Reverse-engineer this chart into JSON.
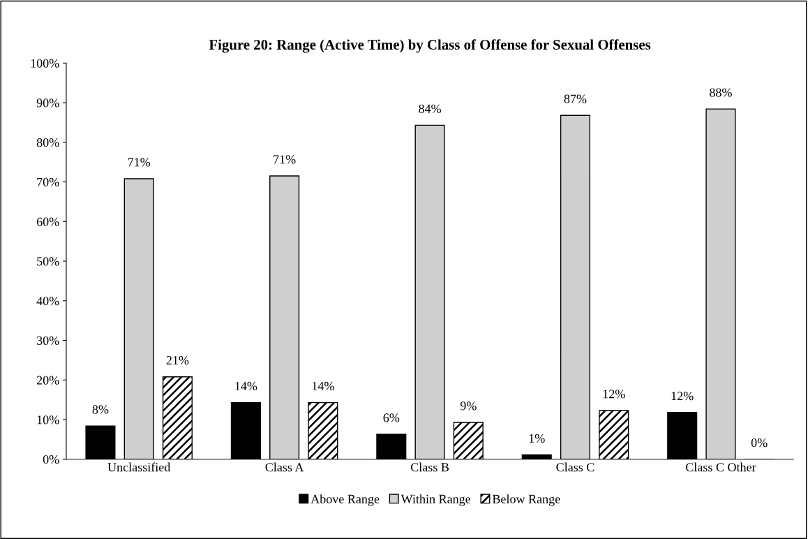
{
  "chart_data": {
    "type": "bar",
    "title": "Figure 20: Range (Active Time) by Class of Offense for Sexual Offenses",
    "categories": [
      "Unclassified",
      "Class A",
      "Class B",
      "Class C",
      "Class C Other"
    ],
    "series": [
      {
        "name": "Above Range",
        "color": "#000000",
        "values": [
          8.4,
          14.3,
          6.3,
          1.1,
          11.8
        ],
        "value_labels": [
          "8%",
          "14%",
          "6%",
          "1%",
          "12%"
        ]
      },
      {
        "name": "Within Range",
        "color": "#d0cece",
        "values": [
          70.8,
          71.5,
          84.3,
          86.8,
          88.4
        ],
        "value_labels": [
          "71%",
          "71%",
          "84%",
          "87%",
          "88%"
        ]
      },
      {
        "name": "Below Range",
        "color": "#000000",
        "values": [
          20.8,
          14.3,
          9.3,
          12.3,
          0
        ],
        "value_labels": [
          "21%",
          "14%",
          "9%",
          "12%",
          "0%"
        ]
      }
    ],
    "ylim": [
      0,
      100
    ],
    "yticks": [
      {
        "value": 0,
        "label": "0%"
      },
      {
        "value": 10,
        "label": "10%"
      },
      {
        "value": 20,
        "label": "20%"
      },
      {
        "value": 30,
        "label": "30%"
      },
      {
        "value": 40,
        "label": "40%"
      },
      {
        "value": 50,
        "label": "50%"
      },
      {
        "value": 60,
        "label": "60%"
      },
      {
        "value": 70,
        "label": "70%"
      },
      {
        "value": 80,
        "label": "80%"
      },
      {
        "value": 90,
        "label": "90%"
      },
      {
        "value": 100,
        "label": "100%"
      }
    ],
    "grid": false,
    "legend": "bottom"
  }
}
